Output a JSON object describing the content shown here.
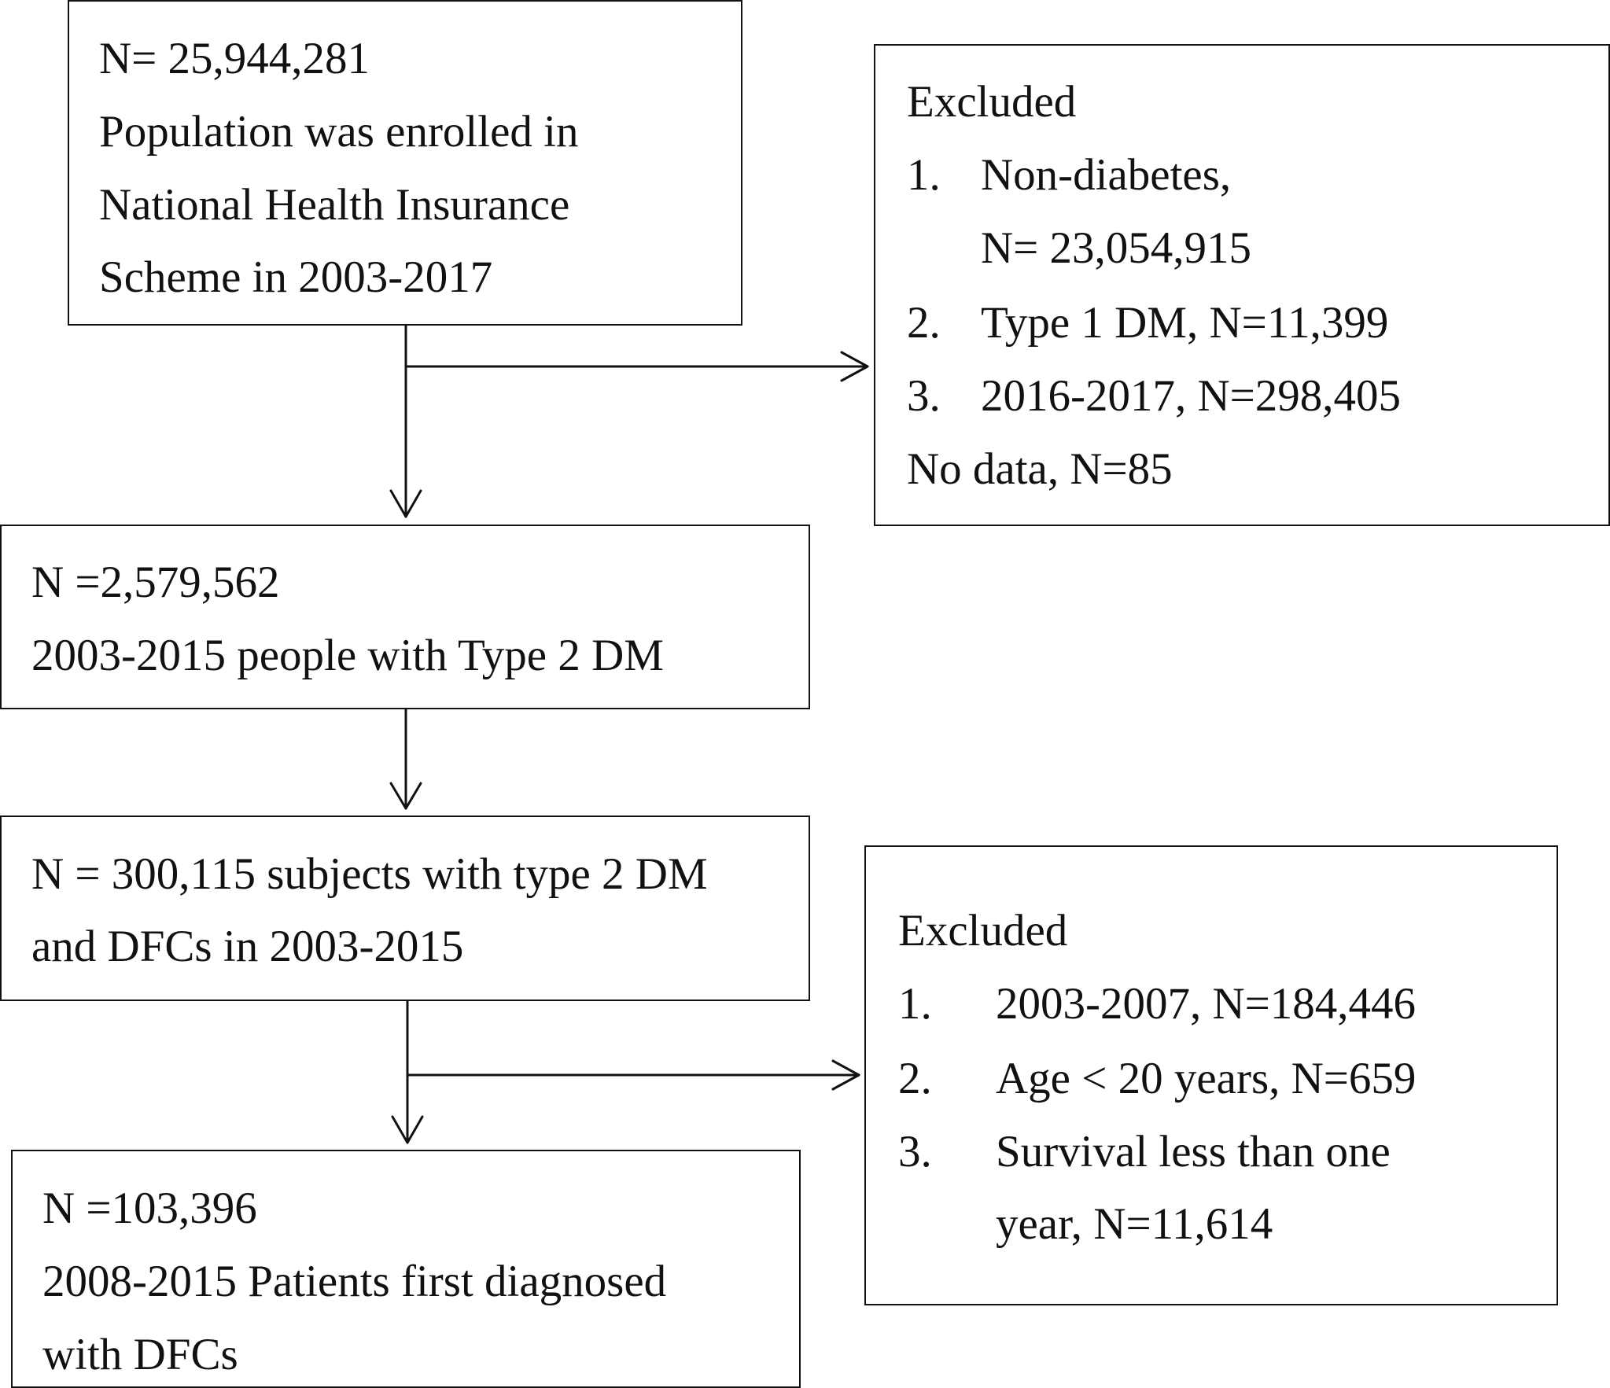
{
  "boxes": {
    "population": {
      "lines": [
        "N= 25,944,281",
        "Population was enrolled in",
        "National Health Insurance",
        "Scheme in 2003-2017"
      ]
    },
    "excluded1": {
      "header": "Excluded",
      "items": [
        {
          "num": "1.",
          "lines": [
            "Non-diabetes,",
            "N= 23,054,915"
          ]
        },
        {
          "num": "2.",
          "lines": [
            "Type 1 DM, N=11,399"
          ]
        },
        {
          "num": "3.",
          "lines": [
            "2016-2017, N=298,405"
          ]
        }
      ],
      "footer": "No data, N=85"
    },
    "type2": {
      "lines": [
        "N =2,579,562",
        "2003-2015 people with Type 2 DM"
      ]
    },
    "dfcs": {
      "lines": [
        "N = 300,115 subjects with type 2 DM",
        "and DFCs in 2003-2015"
      ]
    },
    "excluded2": {
      "header": "Excluded",
      "items": [
        {
          "num": "1.",
          "lines": [
            "2003-2007, N=184,446"
          ]
        },
        {
          "num": "2.",
          "lines": [
            "Age < 20 years, N=659"
          ]
        },
        {
          "num": "3.",
          "lines": [
            "Survival less than one",
            "year, N=11,614"
          ]
        }
      ]
    },
    "final": {
      "lines": [
        "N =103,396",
        "2008-2015 Patients first diagnosed",
        "with DFCs"
      ]
    }
  }
}
